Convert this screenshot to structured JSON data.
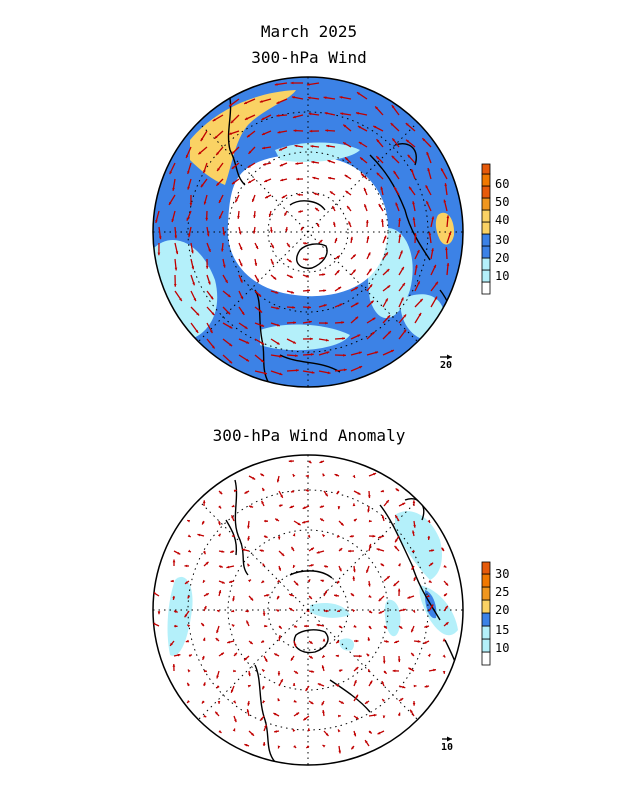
{
  "titles": {
    "main": "March 2025",
    "top": "300-hPa Wind",
    "bottom": "300-hPa Wind Anomaly"
  },
  "colorbars": {
    "top": {
      "labels": [
        "10",
        "20",
        "30",
        "40",
        "50",
        "60"
      ],
      "colors": [
        "#ffffff",
        "#b4f0fa",
        "#3c82e6",
        "#fad264",
        "#f0961e",
        "#e65a0a",
        "#f07800"
      ]
    },
    "bottom": {
      "labels": [
        "10",
        "15",
        "20",
        "25",
        "30"
      ],
      "colors": [
        "#ffffff",
        "#b4f0fa",
        "#3c82e6",
        "#fad264",
        "#f0961e",
        "#f07800"
      ]
    }
  },
  "reference_vectors": {
    "top": "20",
    "bottom": "10"
  },
  "colors": {
    "vector": "#c00000",
    "coast": "#000000",
    "ocean_light": "#b4f0fa",
    "band_blue": "#3c82e6",
    "jet_yellow": "#fad264"
  }
}
